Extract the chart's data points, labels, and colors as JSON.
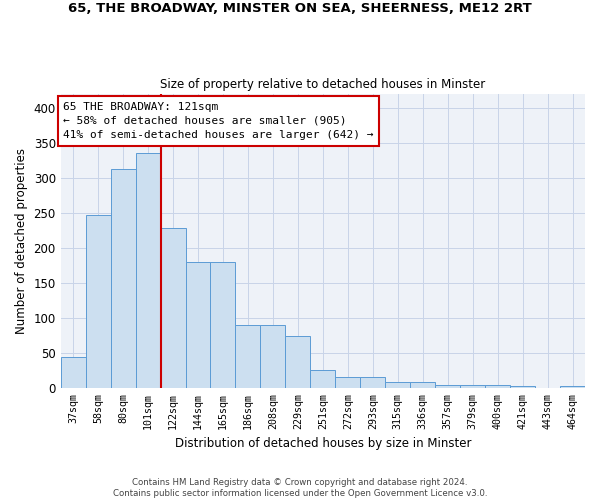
{
  "title_line1": "65, THE BROADWAY, MINSTER ON SEA, SHEERNESS, ME12 2RT",
  "title_line2": "Size of property relative to detached houses in Minster",
  "xlabel": "Distribution of detached houses by size in Minster",
  "ylabel": "Number of detached properties",
  "bar_labels": [
    "37sqm",
    "58sqm",
    "80sqm",
    "101sqm",
    "122sqm",
    "144sqm",
    "165sqm",
    "186sqm",
    "208sqm",
    "229sqm",
    "251sqm",
    "272sqm",
    "293sqm",
    "315sqm",
    "336sqm",
    "357sqm",
    "379sqm",
    "400sqm",
    "421sqm",
    "443sqm",
    "464sqm"
  ],
  "bar_values": [
    44,
    246,
    313,
    335,
    228,
    180,
    180,
    90,
    90,
    74,
    25,
    15,
    15,
    9,
    9,
    4,
    4,
    4,
    2,
    0,
    3
  ],
  "bar_color": "#ccdff0",
  "bar_edge_color": "#5b9bd5",
  "vline_color": "#cc0000",
  "annotation_line1": "65 THE BROADWAY: 121sqm",
  "annotation_line2": "← 58% of detached houses are smaller (905)",
  "annotation_line3": "41% of semi-detached houses are larger (642) →",
  "annotation_box_color": "white",
  "annotation_box_edge": "#cc0000",
  "ylim": [
    0,
    420
  ],
  "yticks": [
    0,
    50,
    100,
    150,
    200,
    250,
    300,
    350,
    400
  ],
  "footer": "Contains HM Land Registry data © Crown copyright and database right 2024.\nContains public sector information licensed under the Open Government Licence v3.0.",
  "bg_color": "#eef2f8",
  "grid_color": "#c8d4e8"
}
